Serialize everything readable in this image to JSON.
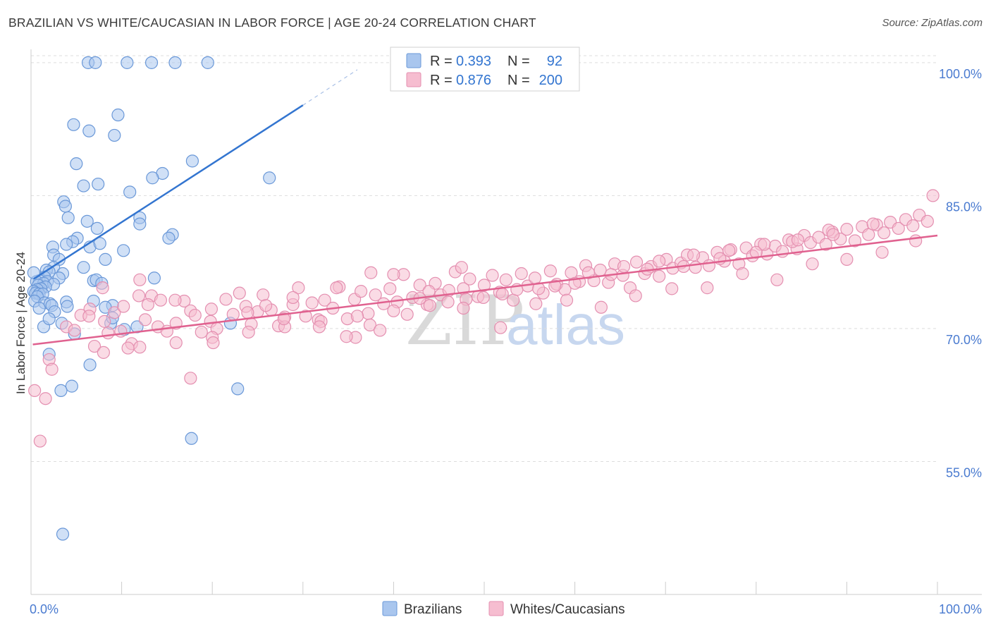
{
  "title": "BRAZILIAN VS WHITE/CAUCASIAN IN LABOR FORCE | AGE 20-24 CORRELATION CHART",
  "source": "Source: ZipAtlas.com",
  "watermark": {
    "zip": "ZIP",
    "atlas": "atlas"
  },
  "colors": {
    "blue_fill": "#a9c6ee",
    "blue_stroke": "#6a98d8",
    "blue_line": "#3375d0",
    "pink_fill": "#f6bdd0",
    "pink_stroke": "#e48fb0",
    "pink_line": "#e0618f",
    "tick_text": "#4a7bd0",
    "grid": "#dddddd"
  },
  "legend": {
    "rows": [
      {
        "r_label": "R =",
        "r_value": "0.393",
        "n_label": "N =",
        "n_value": "92"
      },
      {
        "r_label": "R =",
        "r_value": "0.876",
        "n_label": "N =",
        "n_value": "200"
      }
    ]
  },
  "bottom_legend": [
    "Brazilians",
    "Whites/Caucasians"
  ],
  "chart_data": {
    "type": "scatter",
    "title": "BRAZILIAN VS WHITE/CAUCASIAN IN LABOR FORCE | AGE 20-24 CORRELATION CHART",
    "xlabel": "",
    "ylabel": "In Labor Force | Age 20-24",
    "xlim": [
      0,
      100
    ],
    "ylim": [
      40,
      101.5
    ],
    "x_tick_labels": [
      "0.0%",
      "100.0%"
    ],
    "y_ticks": [
      {
        "value": 55,
        "label": "55.0%"
      },
      {
        "value": 70,
        "label": "70.0%"
      },
      {
        "value": 85,
        "label": "85.0%"
      },
      {
        "value": 100,
        "label": "100.0%"
      }
    ],
    "series": [
      {
        "name": "Brazilians",
        "color": "#a9c6ee",
        "r": 0.393,
        "n": 92,
        "trend": {
          "x": [
            0.3,
            30.0
          ],
          "y": [
            75.6,
            95.2
          ]
        },
        "trend_extension": {
          "x": [
            30.0,
            36.0
          ],
          "y": [
            95.2,
            99.2
          ]
        },
        "points": [
          [
            6.3,
            100
          ],
          [
            7.1,
            100
          ],
          [
            10.6,
            100
          ],
          [
            13.3,
            100
          ],
          [
            15.9,
            100
          ],
          [
            19.5,
            100
          ],
          [
            9.6,
            94.1
          ],
          [
            4.7,
            93.0
          ],
          [
            6.4,
            92.3
          ],
          [
            9.2,
            91.8
          ],
          [
            5.0,
            88.6
          ],
          [
            17.8,
            88.9
          ],
          [
            14.5,
            87.5
          ],
          [
            13.4,
            87.0
          ],
          [
            26.3,
            87.0
          ],
          [
            7.4,
            86.3
          ],
          [
            5.8,
            86.1
          ],
          [
            10.9,
            85.4
          ],
          [
            3.6,
            84.3
          ],
          [
            3.8,
            83.8
          ],
          [
            4.1,
            82.5
          ],
          [
            6.2,
            82.1
          ],
          [
            12.0,
            82.5
          ],
          [
            12.0,
            81.8
          ],
          [
            7.3,
            81.3
          ],
          [
            15.6,
            80.6
          ],
          [
            15.2,
            80.2
          ],
          [
            5.1,
            80.2
          ],
          [
            4.6,
            79.8
          ],
          [
            6.5,
            79.2
          ],
          [
            3.9,
            79.5
          ],
          [
            7.6,
            79.6
          ],
          [
            2.4,
            79.2
          ],
          [
            2.5,
            78.3
          ],
          [
            10.2,
            78.8
          ],
          [
            3.1,
            77.8
          ],
          [
            8.2,
            77.8
          ],
          [
            2.5,
            76.9
          ],
          [
            1.7,
            76.6
          ],
          [
            5.8,
            76.9
          ],
          [
            2.0,
            76.4
          ],
          [
            3.5,
            76.2
          ],
          [
            1.5,
            75.8
          ],
          [
            13.6,
            75.7
          ],
          [
            3.1,
            75.7
          ],
          [
            6.9,
            75.4
          ],
          [
            7.2,
            75.5
          ],
          [
            7.8,
            75.1
          ],
          [
            0.9,
            75.4
          ],
          [
            1.8,
            75.3
          ],
          [
            0.6,
            75.3
          ],
          [
            1.4,
            75.1
          ],
          [
            2.5,
            75.0
          ],
          [
            0.8,
            74.9
          ],
          [
            1.6,
            74.7
          ],
          [
            1.1,
            74.5
          ],
          [
            0.7,
            74.4
          ],
          [
            0.3,
            74.2
          ],
          [
            0.5,
            74.0
          ],
          [
            0.9,
            73.9
          ],
          [
            1.3,
            73.9
          ],
          [
            0.7,
            73.6
          ],
          [
            0.4,
            73.1
          ],
          [
            1.5,
            72.9
          ],
          [
            2.1,
            72.8
          ],
          [
            3.9,
            73.0
          ],
          [
            6.9,
            73.1
          ],
          [
            9.0,
            72.6
          ],
          [
            4.0,
            72.5
          ],
          [
            0.9,
            72.3
          ],
          [
            2.3,
            72.6
          ],
          [
            2.6,
            71.9
          ],
          [
            3.4,
            70.6
          ],
          [
            1.4,
            70.2
          ],
          [
            11.7,
            70.2
          ],
          [
            2.0,
            71.1
          ],
          [
            22.0,
            70.6
          ],
          [
            8.8,
            70.6
          ],
          [
            4.8,
            69.4
          ],
          [
            2.0,
            67.1
          ],
          [
            6.5,
            65.9
          ],
          [
            4.5,
            63.5
          ],
          [
            22.8,
            63.2
          ],
          [
            17.7,
            57.6
          ],
          [
            0.3,
            76.3
          ],
          [
            3.3,
            63.0
          ],
          [
            3.5,
            46.8
          ],
          [
            10.3,
            69.9
          ],
          [
            9.0,
            71.2
          ],
          [
            8.2,
            72.4
          ]
        ]
      },
      {
        "name": "Whites/Caucasians",
        "color": "#f6bdd0",
        "r": 0.876,
        "n": 200,
        "trend": {
          "x": [
            0.2,
            100.0
          ],
          "y": [
            68.2,
            80.5
          ]
        },
        "points": [
          [
            0.4,
            63.0
          ],
          [
            1.6,
            62.1
          ],
          [
            1.0,
            57.3
          ],
          [
            2.0,
            66.5
          ],
          [
            2.3,
            65.4
          ],
          [
            3.9,
            70.2
          ],
          [
            4.8,
            69.8
          ],
          [
            6.5,
            72.2
          ],
          [
            7.0,
            68.0
          ],
          [
            5.5,
            71.5
          ],
          [
            8.1,
            70.8
          ],
          [
            8.5,
            69.5
          ],
          [
            9.2,
            71.8
          ],
          [
            9.9,
            69.7
          ],
          [
            10.2,
            72.5
          ],
          [
            11.1,
            68.3
          ],
          [
            12.6,
            71.0
          ],
          [
            13.3,
            73.7
          ],
          [
            12.9,
            72.7
          ],
          [
            14.0,
            70.2
          ],
          [
            15.0,
            69.7
          ],
          [
            16.0,
            70.6
          ],
          [
            16.9,
            73.1
          ],
          [
            17.6,
            72.0
          ],
          [
            18.1,
            71.5
          ],
          [
            18.8,
            69.6
          ],
          [
            19.8,
            70.8
          ],
          [
            20.5,
            70.0
          ],
          [
            21.5,
            73.3
          ],
          [
            22.3,
            71.6
          ],
          [
            23.0,
            74.0
          ],
          [
            23.7,
            72.5
          ],
          [
            24.3,
            70.5
          ],
          [
            25.0,
            71.9
          ],
          [
            25.6,
            73.8
          ],
          [
            26.5,
            72.1
          ],
          [
            27.3,
            70.3
          ],
          [
            28.0,
            71.3
          ],
          [
            28.9,
            72.7
          ],
          [
            29.5,
            74.6
          ],
          [
            30.3,
            71.4
          ],
          [
            31.0,
            72.9
          ],
          [
            31.7,
            71.0
          ],
          [
            32.4,
            73.2
          ],
          [
            33.3,
            72.3
          ],
          [
            34.0,
            74.7
          ],
          [
            34.9,
            71.1
          ],
          [
            35.7,
            73.3
          ],
          [
            36.4,
            74.2
          ],
          [
            37.2,
            71.7
          ],
          [
            38.0,
            73.8
          ],
          [
            38.9,
            72.8
          ],
          [
            39.6,
            74.5
          ],
          [
            40.4,
            73.0
          ],
          [
            41.1,
            76.1
          ],
          [
            42.1,
            73.5
          ],
          [
            42.9,
            74.9
          ],
          [
            43.7,
            72.7
          ],
          [
            44.6,
            75.1
          ],
          [
            45.2,
            73.8
          ],
          [
            46.1,
            74.3
          ],
          [
            46.8,
            76.4
          ],
          [
            47.7,
            74.5
          ],
          [
            48.4,
            75.6
          ],
          [
            49.3,
            73.6
          ],
          [
            50.0,
            74.9
          ],
          [
            50.9,
            76.0
          ],
          [
            51.7,
            74.1
          ],
          [
            52.4,
            75.5
          ],
          [
            53.2,
            73.2
          ],
          [
            54.1,
            76.2
          ],
          [
            54.8,
            74.8
          ],
          [
            55.6,
            75.7
          ],
          [
            56.5,
            74.0
          ],
          [
            57.3,
            76.5
          ],
          [
            58.0,
            75.0
          ],
          [
            58.9,
            74.4
          ],
          [
            59.6,
            76.3
          ],
          [
            60.5,
            75.3
          ],
          [
            61.2,
            77.1
          ],
          [
            62.1,
            75.4
          ],
          [
            62.8,
            76.6
          ],
          [
            63.7,
            75.2
          ],
          [
            64.4,
            77.3
          ],
          [
            65.3,
            76.0
          ],
          [
            66.1,
            74.6
          ],
          [
            66.8,
            77.5
          ],
          [
            67.7,
            76.2
          ],
          [
            68.4,
            77.0
          ],
          [
            69.3,
            75.9
          ],
          [
            70.1,
            77.8
          ],
          [
            70.8,
            76.8
          ],
          [
            71.7,
            77.4
          ],
          [
            72.4,
            78.3
          ],
          [
            73.3,
            76.9
          ],
          [
            74.1,
            78.0
          ],
          [
            74.8,
            77.1
          ],
          [
            75.7,
            78.6
          ],
          [
            76.5,
            77.6
          ],
          [
            77.2,
            78.9
          ],
          [
            78.1,
            77.3
          ],
          [
            78.9,
            79.1
          ],
          [
            79.6,
            78.2
          ],
          [
            80.5,
            79.5
          ],
          [
            81.2,
            78.4
          ],
          [
            82.1,
            79.3
          ],
          [
            82.9,
            78.7
          ],
          [
            83.6,
            80.0
          ],
          [
            84.5,
            79.0
          ],
          [
            85.3,
            80.5
          ],
          [
            86.0,
            79.7
          ],
          [
            86.9,
            80.3
          ],
          [
            87.7,
            79.5
          ],
          [
            88.4,
            80.9
          ],
          [
            89.3,
            80.1
          ],
          [
            90.0,
            81.2
          ],
          [
            90.9,
            79.9
          ],
          [
            91.7,
            81.5
          ],
          [
            92.4,
            80.6
          ],
          [
            93.3,
            81.7
          ],
          [
            94.1,
            80.8
          ],
          [
            94.8,
            82.0
          ],
          [
            95.7,
            81.3
          ],
          [
            96.5,
            82.3
          ],
          [
            97.3,
            81.6
          ],
          [
            98.0,
            82.8
          ],
          [
            98.9,
            82.1
          ],
          [
            99.5,
            85.0
          ],
          [
            92.9,
            81.8
          ],
          [
            88.0,
            81.1
          ],
          [
            84.0,
            79.8
          ],
          [
            80.0,
            78.6
          ],
          [
            76.0,
            77.9
          ],
          [
            72.0,
            77.0
          ],
          [
            68.0,
            76.7
          ],
          [
            64.0,
            76.1
          ],
          [
            60.0,
            75.1
          ],
          [
            56.0,
            74.5
          ],
          [
            52.0,
            73.9
          ],
          [
            48.0,
            73.3
          ],
          [
            44.0,
            72.6
          ],
          [
            40.0,
            72.0
          ],
          [
            36.0,
            71.4
          ],
          [
            32.0,
            70.8
          ],
          [
            28.0,
            70.2
          ],
          [
            24.0,
            69.6
          ],
          [
            20.0,
            69.0
          ],
          [
            16.0,
            68.4
          ],
          [
            12.0,
            67.9
          ],
          [
            8.0,
            67.3
          ],
          [
            37.5,
            76.3
          ],
          [
            40.0,
            76.1
          ],
          [
            43.9,
            74.2
          ],
          [
            47.7,
            72.3
          ],
          [
            51.8,
            70.1
          ],
          [
            55.7,
            72.8
          ],
          [
            59.1,
            73.2
          ],
          [
            62.9,
            72.4
          ],
          [
            66.7,
            73.7
          ],
          [
            70.7,
            74.5
          ],
          [
            74.6,
            74.6
          ],
          [
            78.5,
            76.2
          ],
          [
            82.3,
            75.5
          ],
          [
            86.2,
            77.3
          ],
          [
            90.0,
            77.8
          ],
          [
            93.9,
            78.6
          ],
          [
            97.6,
            79.9
          ],
          [
            35.8,
            69.0
          ],
          [
            31.8,
            70.2
          ],
          [
            27.9,
            71.1
          ],
          [
            23.9,
            71.8
          ],
          [
            19.9,
            72.2
          ],
          [
            15.9,
            73.2
          ],
          [
            11.9,
            73.7
          ],
          [
            7.9,
            74.6
          ],
          [
            12.0,
            75.5
          ],
          [
            17.6,
            64.4
          ],
          [
            34.8,
            69.1
          ],
          [
            37.4,
            70.4
          ],
          [
            41.5,
            71.6
          ],
          [
            46.0,
            73.0
          ],
          [
            49.9,
            73.5
          ],
          [
            53.6,
            74.4
          ],
          [
            57.8,
            74.8
          ],
          [
            61.5,
            76.3
          ],
          [
            65.4,
            77.0
          ],
          [
            69.3,
            77.6
          ],
          [
            73.1,
            78.3
          ],
          [
            77.0,
            78.8
          ],
          [
            80.9,
            79.5
          ],
          [
            84.6,
            80.0
          ],
          [
            88.5,
            80.6
          ],
          [
            6.4,
            71.4
          ],
          [
            10.7,
            67.8
          ],
          [
            14.3,
            73.2
          ],
          [
            20.1,
            68.4
          ],
          [
            25.9,
            72.6
          ],
          [
            28.9,
            73.5
          ],
          [
            33.7,
            74.6
          ],
          [
            38.5,
            69.8
          ],
          [
            42.9,
            73.4
          ],
          [
            47.5,
            76.9
          ]
        ]
      }
    ]
  }
}
